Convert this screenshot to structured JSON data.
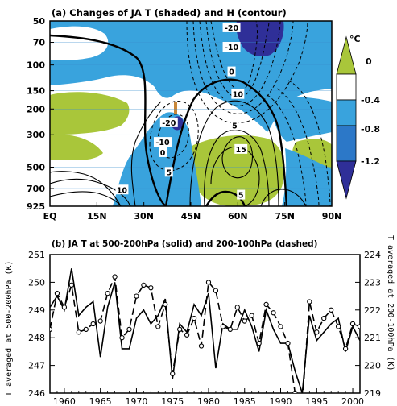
{
  "chart_data": [
    {
      "type": "heatmap",
      "title": "(a) Changes of JA T (shaded) and H (contour)",
      "x_tick_labels": [
        "EQ",
        "15N",
        "30N",
        "45N",
        "60N",
        "75N",
        "90N"
      ],
      "x_ticks": [
        0,
        15,
        30,
        45,
        60,
        75,
        90
      ],
      "y_tick_labels": [
        "50",
        "70",
        "100",
        "150",
        "200",
        "300",
        "500",
        "700",
        "925"
      ],
      "y_ticks": [
        50,
        70,
        100,
        150,
        200,
        300,
        500,
        700,
        925
      ],
      "y_scale": "log-pressure",
      "colorbar": {
        "unit": "°C",
        "tick_labels": [
          "0",
          "-0.4",
          "-0.8",
          "-1.2"
        ],
        "colors": [
          "#a9c63a",
          "#ffffff",
          "#39a3dd",
          "#2c78c8",
          "#2f2f98"
        ]
      },
      "contour_labels": [
        {
          "text": "-20",
          "lat": 58,
          "p": 56
        },
        {
          "text": "-10",
          "lat": 58,
          "p": 76
        },
        {
          "text": "0",
          "lat": 58,
          "p": 112
        },
        {
          "text": "10",
          "lat": 60,
          "p": 160
        },
        {
          "text": "-20",
          "lat": 38,
          "p": 250
        },
        {
          "text": "-10",
          "lat": 36,
          "p": 340
        },
        {
          "text": "0",
          "lat": 36,
          "p": 400
        },
        {
          "text": "5",
          "lat": 38,
          "p": 545
        },
        {
          "text": "5",
          "lat": 59,
          "p": 262
        },
        {
          "text": "15",
          "lat": 61,
          "p": 380
        },
        {
          "text": "10",
          "lat": 23,
          "p": 720
        },
        {
          "text": "5",
          "lat": 61,
          "p": 780
        }
      ]
    },
    {
      "type": "line",
      "title": "(b) JA T at 500-200hPa (solid) and 200-100hPa (dashed)",
      "xlabel": "",
      "ylabel": "T averaged at 500-200hPa (K)",
      "y2label": "T averaged at 200-100hPa (K)",
      "xlim": [
        1958,
        2001
      ],
      "x_ticks": [
        1960,
        1965,
        1970,
        1975,
        1980,
        1985,
        1990,
        1995,
        2000
      ],
      "ylim": [
        246,
        251
      ],
      "y2lim": [
        219,
        224
      ],
      "y_ticks": [
        246,
        247,
        248,
        249,
        250,
        251
      ],
      "y2_ticks": [
        219,
        220,
        221,
        222,
        223,
        224
      ],
      "x": [
        1958,
        1959,
        1960,
        1961,
        1962,
        1963,
        1964,
        1965,
        1966,
        1967,
        1968,
        1969,
        1970,
        1971,
        1972,
        1973,
        1974,
        1975,
        1976,
        1977,
        1978,
        1979,
        1980,
        1981,
        1982,
        1983,
        1984,
        1985,
        1986,
        1987,
        1988,
        1989,
        1990,
        1991,
        1992,
        1993,
        1994,
        1995,
        1996,
        1997,
        1998,
        1999,
        2000,
        2001
      ],
      "series": [
        {
          "name": "500-200hPa (solid)",
          "axis": "left",
          "values": [
            249.1,
            249.5,
            249.0,
            250.5,
            248.8,
            249.1,
            249.3,
            247.3,
            249.1,
            250.0,
            247.6,
            247.6,
            248.7,
            249.0,
            248.5,
            248.8,
            249.4,
            246.5,
            248.5,
            248.2,
            249.2,
            248.8,
            249.6,
            246.9,
            248.5,
            248.3,
            248.3,
            249.0,
            248.4,
            247.5,
            249.0,
            248.3,
            247.8,
            247.8,
            246.8,
            246.0,
            248.8,
            247.9,
            248.2,
            248.5,
            248.7,
            247.5,
            248.4,
            247.9
          ]
        },
        {
          "name": "200-100hPa (dashed)",
          "axis": "right",
          "values": [
            221.3,
            222.6,
            222.1,
            222.9,
            221.2,
            221.3,
            221.5,
            221.6,
            222.6,
            223.2,
            221.0,
            221.3,
            222.5,
            222.9,
            222.8,
            221.4,
            222.2,
            219.7,
            221.3,
            221.1,
            221.7,
            220.7,
            223.0,
            222.7,
            221.4,
            221.3,
            222.1,
            221.6,
            221.8,
            220.8,
            222.2,
            221.9,
            221.4,
            220.8,
            219.0,
            218.6,
            222.3,
            221.2,
            221.7,
            222.0,
            221.4,
            220.6,
            221.5,
            221.4
          ]
        }
      ],
      "extra_y_label": "250"
    }
  ]
}
